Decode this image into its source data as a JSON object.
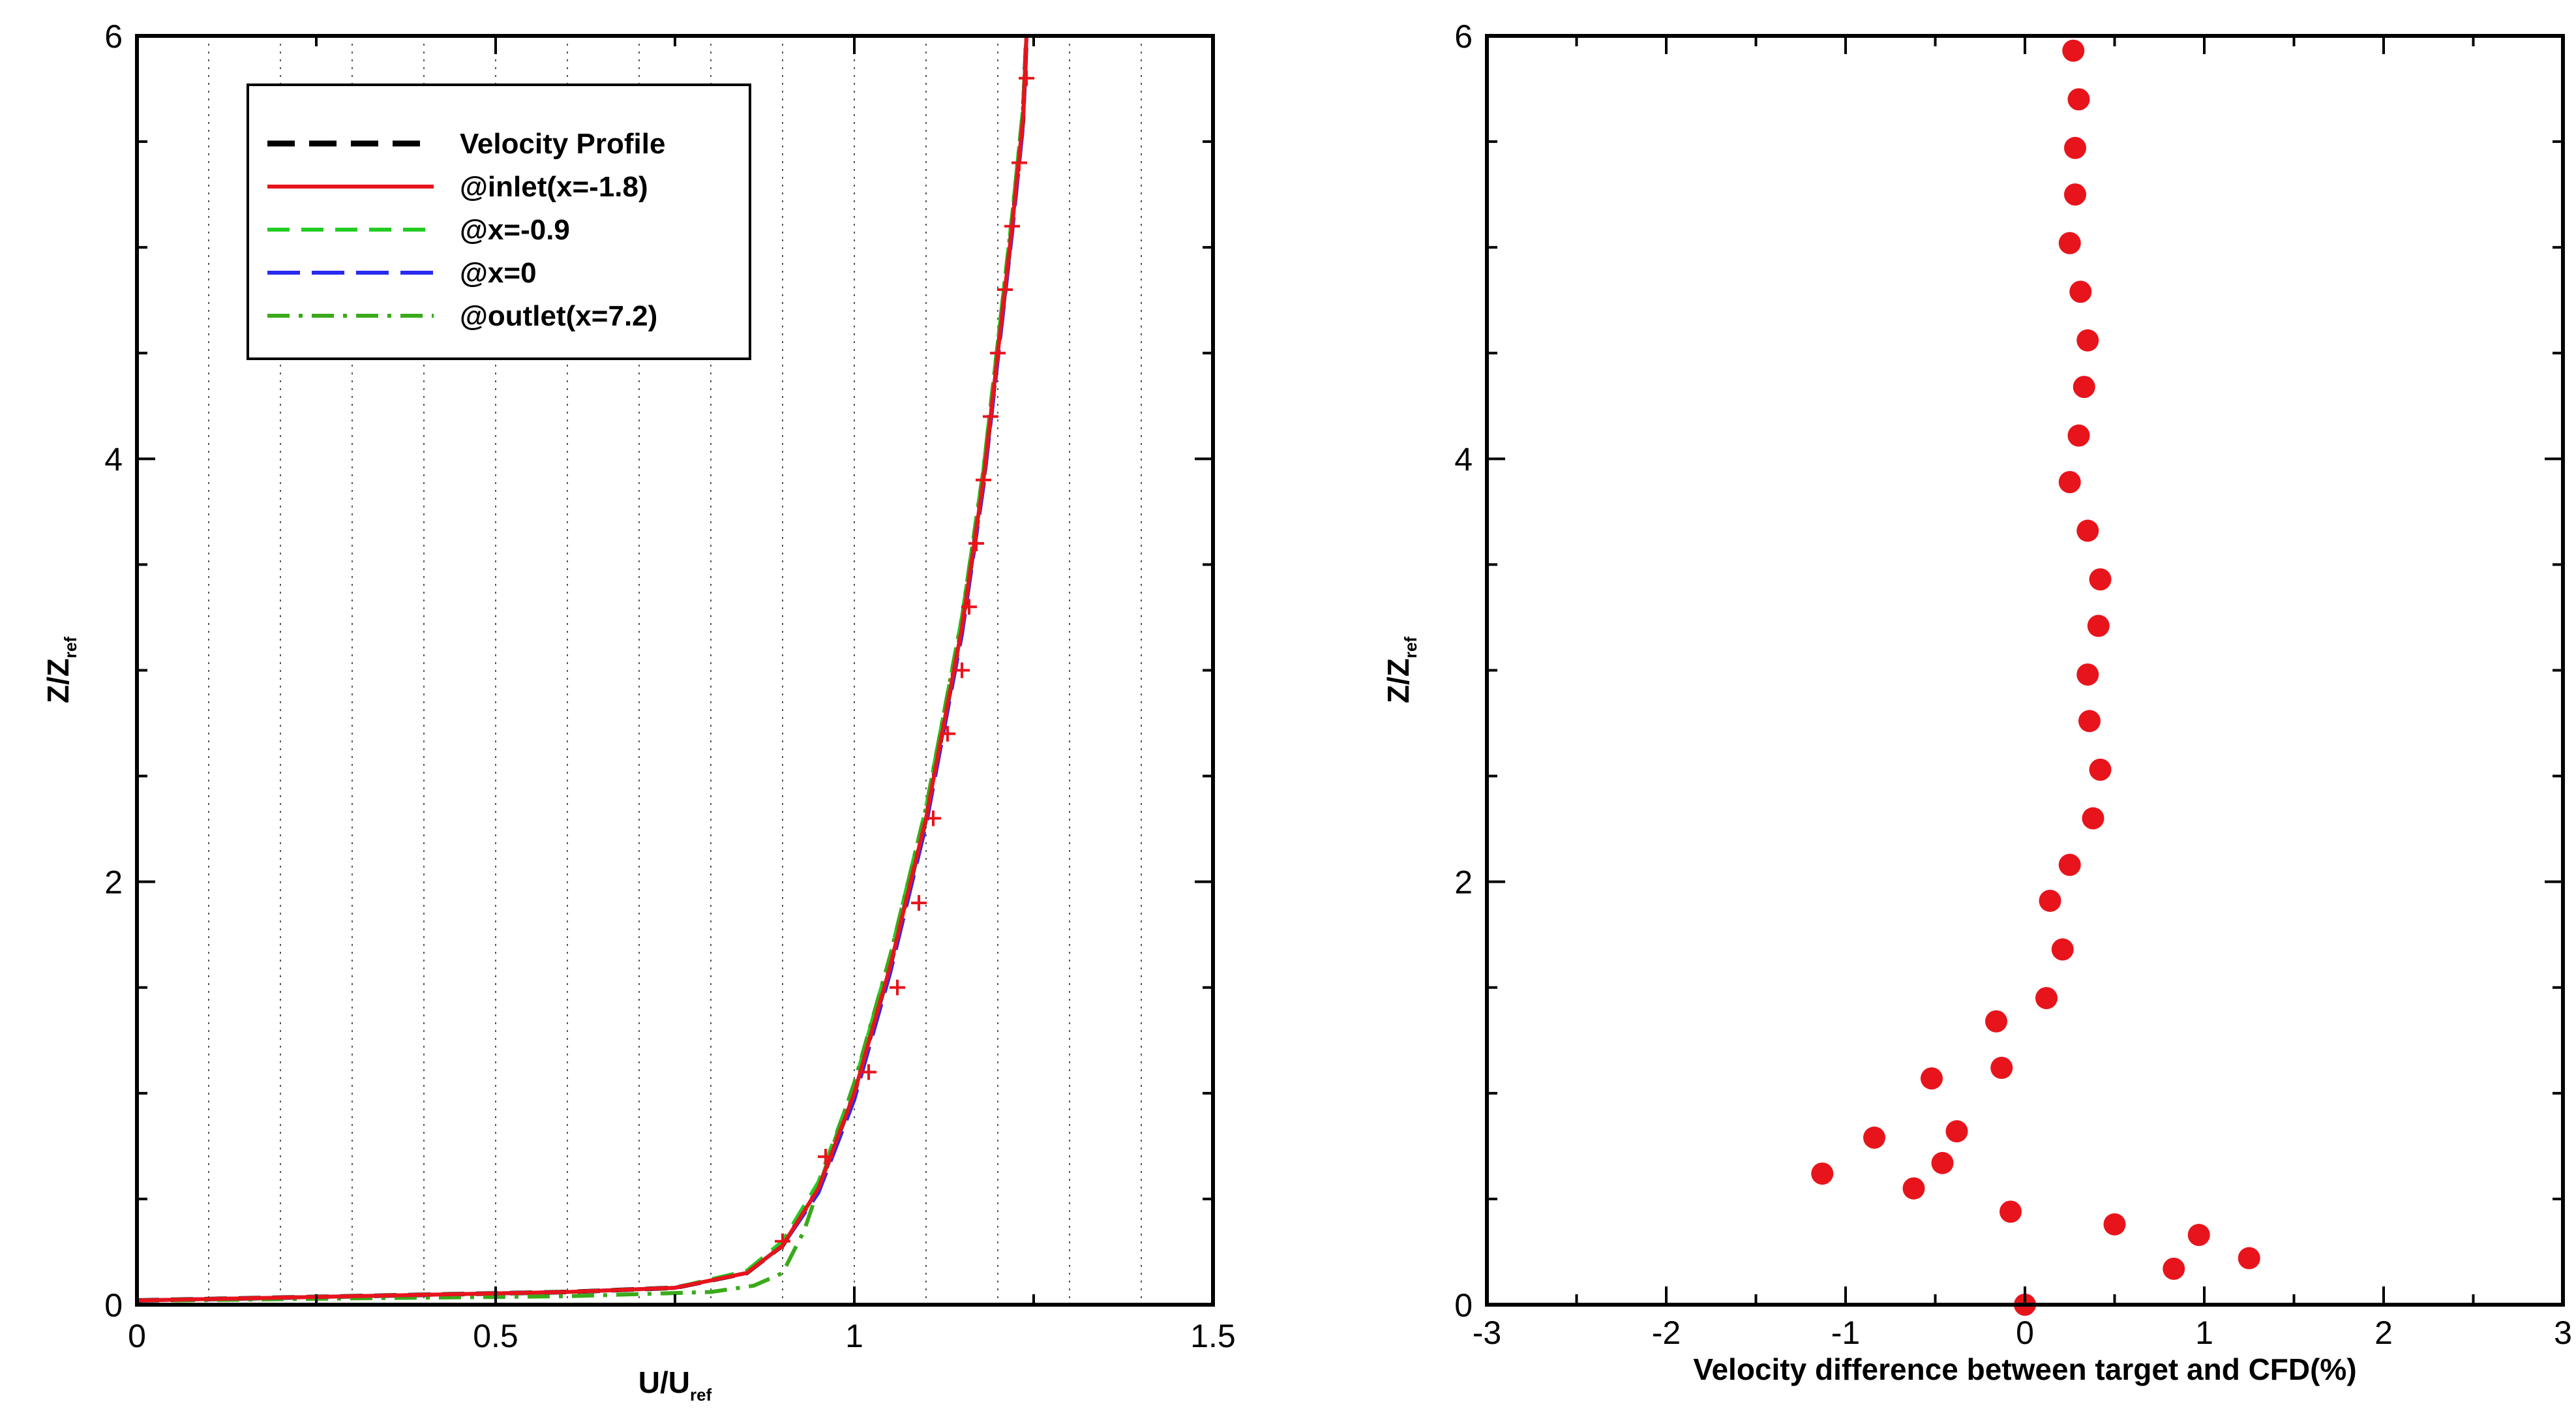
{
  "chart_data": [
    {
      "type": "line",
      "title": "",
      "xlabel": "U/U",
      "xlabel_sub": "ref",
      "ylabel": "Z/Z",
      "ylabel_sub": "ref",
      "xlim": [
        0,
        1.5
      ],
      "ylim": [
        0,
        6
      ],
      "xticks": [
        0,
        0.5,
        1,
        1.5
      ],
      "xtick_labels": [
        "0",
        "0.5",
        "1",
        "1.5"
      ],
      "yticks": [
        0,
        2,
        4,
        6
      ],
      "ytick_labels": [
        "0",
        "2",
        "4",
        "6"
      ],
      "grid": "vertical dotted lines every 0.1",
      "legend_position": "top-left",
      "legend": [
        "Velocity Profile",
        "@inlet(x=-1.8)",
        "@x=-0.9",
        "@x=0",
        "@outlet(x=7.2)"
      ],
      "series": [
        {
          "name": "Velocity Profile",
          "color": "#000000",
          "style": "dashed",
          "x": [
            0.0,
            0.3,
            0.6,
            0.75,
            0.85,
            0.9,
            0.95,
            1.0,
            1.05,
            1.1,
            1.15,
            1.18,
            1.2,
            1.22,
            1.235,
            1.24
          ],
          "y": [
            0.02,
            0.04,
            0.06,
            0.08,
            0.15,
            0.28,
            0.55,
            1.0,
            1.6,
            2.3,
            3.2,
            3.9,
            4.5,
            5.1,
            5.6,
            6.0
          ]
        },
        {
          "name": "@inlet(x=-1.8)",
          "color": "#e8141c",
          "style": "solid",
          "x": [
            0.0,
            0.3,
            0.6,
            0.75,
            0.85,
            0.9,
            0.95,
            1.0,
            1.05,
            1.1,
            1.15,
            1.18,
            1.2,
            1.22,
            1.235,
            1.24
          ],
          "y": [
            0.02,
            0.04,
            0.06,
            0.08,
            0.15,
            0.28,
            0.55,
            1.0,
            1.6,
            2.3,
            3.2,
            3.9,
            4.5,
            5.1,
            5.6,
            6.0
          ]
        },
        {
          "name": "@x=-0.9",
          "color": "#22cc22",
          "style": "dashed",
          "x": [
            0.0,
            0.3,
            0.6,
            0.75,
            0.85,
            0.9,
            0.95,
            1.0,
            1.05,
            1.1,
            1.15,
            1.18,
            1.2,
            1.22,
            1.235,
            1.24
          ],
          "y": [
            0.02,
            0.04,
            0.06,
            0.08,
            0.16,
            0.3,
            0.58,
            1.04,
            1.65,
            2.35,
            3.25,
            3.95,
            4.55,
            5.15,
            5.65,
            6.0
          ]
        },
        {
          "name": "@x=0",
          "color": "#2a2af0",
          "style": "longdash",
          "x": [
            0.0,
            0.3,
            0.6,
            0.75,
            0.85,
            0.9,
            0.95,
            1.0,
            1.05,
            1.1,
            1.15,
            1.18,
            1.2,
            1.22,
            1.235,
            1.24
          ],
          "y": [
            0.02,
            0.04,
            0.06,
            0.08,
            0.15,
            0.28,
            0.53,
            0.97,
            1.57,
            2.27,
            3.17,
            3.87,
            4.47,
            5.07,
            5.57,
            6.0
          ]
        },
        {
          "name": "@outlet(x=7.2)",
          "color": "#3aaa1a",
          "style": "dashdot",
          "x": [
            0.05,
            0.3,
            0.6,
            0.8,
            0.86,
            0.9,
            0.93,
            0.96,
            1.0,
            1.05,
            1.1,
            1.15,
            1.18,
            1.2,
            1.22,
            1.235,
            1.24
          ],
          "y": [
            0.02,
            0.03,
            0.04,
            0.06,
            0.09,
            0.15,
            0.35,
            0.65,
            1.05,
            1.65,
            2.35,
            3.25,
            3.95,
            4.55,
            5.15,
            5.65,
            6.0
          ]
        }
      ],
      "markers": {
        "name": "target",
        "color": "#e8141c",
        "x": [
          0.9,
          0.96,
          1.02,
          1.06,
          1.09,
          1.11,
          1.13,
          1.15,
          1.16,
          1.17,
          1.18,
          1.19,
          1.2,
          1.21,
          1.22,
          1.23,
          1.24
        ],
        "y": [
          0.3,
          0.7,
          1.1,
          1.5,
          1.9,
          2.3,
          2.7,
          3.0,
          3.3,
          3.6,
          3.9,
          4.2,
          4.5,
          4.8,
          5.1,
          5.4,
          5.8
        ]
      }
    },
    {
      "type": "scatter",
      "title": "",
      "xlabel": "Velocity difference between target and CFD(%)",
      "ylabel": "Z/Z",
      "ylabel_sub": "ref",
      "xlim": [
        -3,
        3
      ],
      "ylim": [
        0,
        6
      ],
      "xticks": [
        -3,
        -2,
        -1,
        0,
        1,
        2,
        3
      ],
      "xtick_labels": [
        "-3",
        "-2",
        "-1",
        "0",
        "1",
        "2",
        "3"
      ],
      "yticks": [
        0,
        2,
        4,
        6
      ],
      "ytick_labels": [
        "0",
        "2",
        "4",
        "6"
      ],
      "grid": "none",
      "series": [
        {
          "name": "difference",
          "color": "#e8141c",
          "x": [
            0.0,
            0.83,
            1.25,
            0.97,
            0.5,
            -0.08,
            -0.62,
            -0.46,
            -1.13,
            -0.38,
            -0.84,
            -0.13,
            -0.52,
            -0.16,
            0.12,
            0.21,
            0.14,
            0.25,
            0.38,
            0.42,
            0.36,
            0.35,
            0.41,
            0.42,
            0.35,
            0.25,
            0.3,
            0.33,
            0.35,
            0.31,
            0.25,
            0.28,
            0.28,
            0.3,
            0.27
          ],
          "y": [
            0.0,
            0.17,
            0.22,
            0.33,
            0.38,
            0.44,
            0.55,
            0.67,
            0.62,
            0.82,
            0.79,
            1.12,
            1.07,
            1.34,
            1.45,
            1.68,
            1.91,
            2.08,
            2.3,
            2.53,
            2.76,
            2.98,
            3.21,
            3.43,
            3.66,
            3.89,
            4.11,
            4.34,
            4.56,
            4.79,
            5.02,
            5.25,
            5.47,
            5.7,
            5.93
          ]
        }
      ]
    }
  ]
}
